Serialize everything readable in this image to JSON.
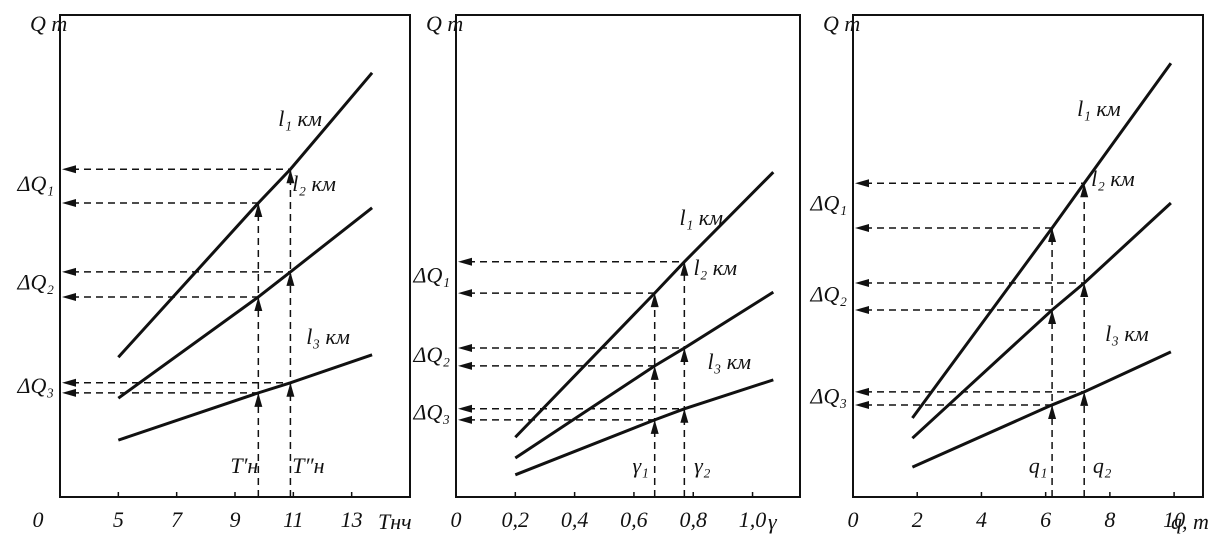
{
  "chart_data": [
    {
      "type": "line",
      "y_label": "Q т",
      "x_label": "Tнч",
      "origin_label": "0",
      "xlim": [
        3,
        15
      ],
      "ylim": [
        0,
        100
      ],
      "xticks": [
        5,
        7,
        9,
        11,
        13
      ],
      "x": [
        5,
        9.8,
        10.9,
        13.7
      ],
      "series": [
        {
          "name": "l₁ км",
          "color": "#111111",
          "values": [
            29,
            61,
            68,
            88
          ]
        },
        {
          "name": "l₂ км",
          "color": "#111111",
          "values": [
            20.5,
            41.5,
            46.7,
            60
          ]
        },
        {
          "name": "l₃ км",
          "color": "#111111",
          "values": [
            11.8,
            21.6,
            23.7,
            29.5
          ]
        }
      ],
      "marker_labels": [
        "T′н",
        "T″н"
      ],
      "delta_labels": [
        "ΔQ₁",
        "ΔQ₂",
        "ΔQ₃"
      ]
    },
    {
      "type": "line",
      "y_label": "Q т",
      "x_label": "γ",
      "xlim": [
        0,
        1.16
      ],
      "ylim": [
        0,
        100
      ],
      "xticks": [
        0,
        {
          "value": 0.2,
          "label": "0,2"
        },
        {
          "value": 0.4,
          "label": "0,4"
        },
        {
          "value": 0.6,
          "label": "0,6"
        },
        {
          "value": 0.8,
          "label": "0,8"
        },
        {
          "value": 1.0,
          "label": "1,0"
        }
      ],
      "x": [
        0.2,
        0.67,
        0.77,
        1.07
      ],
      "series": [
        {
          "name": "l₁ км",
          "color": "#111111",
          "values": [
            12.4,
            42.3,
            48.8,
            67.4
          ]
        },
        {
          "name": "l₂ км",
          "color": "#111111",
          "values": [
            8.1,
            27.2,
            30.9,
            42.5
          ]
        },
        {
          "name": "l₃ км",
          "color": "#111111",
          "values": [
            4.6,
            16,
            18.3,
            24.3
          ]
        }
      ],
      "marker_labels": [
        "γ₁",
        "γ₂"
      ],
      "delta_labels": [
        "ΔQ₁",
        "ΔQ₂",
        "ΔQ₃"
      ]
    },
    {
      "type": "line",
      "y_label": "Q т",
      "x_label": "q, т",
      "xlim": [
        0,
        10.9
      ],
      "ylim": [
        0,
        100
      ],
      "xticks": [
        0,
        2,
        4,
        6,
        8,
        10
      ],
      "x": [
        1.85,
        6.2,
        7.2,
        9.9
      ],
      "series": [
        {
          "name": "l₁ км",
          "color": "#111111",
          "values": [
            16.4,
            55.8,
            65.1,
            90
          ]
        },
        {
          "name": "l₂ км",
          "color": "#111111",
          "values": [
            12.2,
            38.8,
            44.4,
            61
          ]
        },
        {
          "name": "l₃ км",
          "color": "#111111",
          "values": [
            6.2,
            19.1,
            21.8,
            30.1
          ]
        }
      ],
      "marker_labels": [
        "q₁",
        "q₂"
      ],
      "delta_labels": [
        "ΔQ₁",
        "ΔQ₂",
        "ΔQ₃"
      ]
    }
  ]
}
